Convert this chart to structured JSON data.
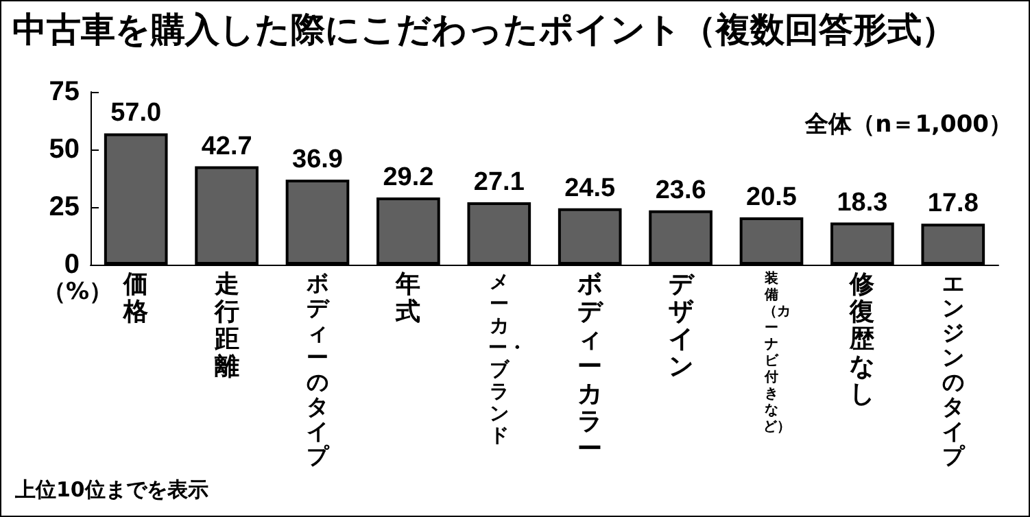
{
  "chart_data": {
    "type": "bar",
    "title": "中古車を購入した際にこだわったポイント（複数回答形式）",
    "ylabel": "（%）",
    "categories": [
      "価格",
      "走行距離",
      "ボディーのタイプ",
      "年式",
      "メーカー・ブランド",
      "ボディーカラー",
      "デザイン",
      "装備（カーナビ付きなど）",
      "修復歴なし",
      "エンジンのタイプ"
    ],
    "values": [
      57.0,
      42.7,
      36.9,
      29.2,
      27.1,
      24.5,
      23.6,
      20.5,
      18.3,
      17.8
    ],
    "value_labels": [
      "57.0",
      "42.7",
      "36.9",
      "29.2",
      "27.1",
      "24.5",
      "23.6",
      "20.5",
      "18.3",
      "17.8"
    ],
    "color": "#606060",
    "ylim": [
      0,
      75
    ],
    "yticks": [
      0,
      25,
      50,
      75
    ],
    "grid": false,
    "annotations": [
      "全体（n＝1,000）",
      "上位10位までを表示"
    ]
  }
}
